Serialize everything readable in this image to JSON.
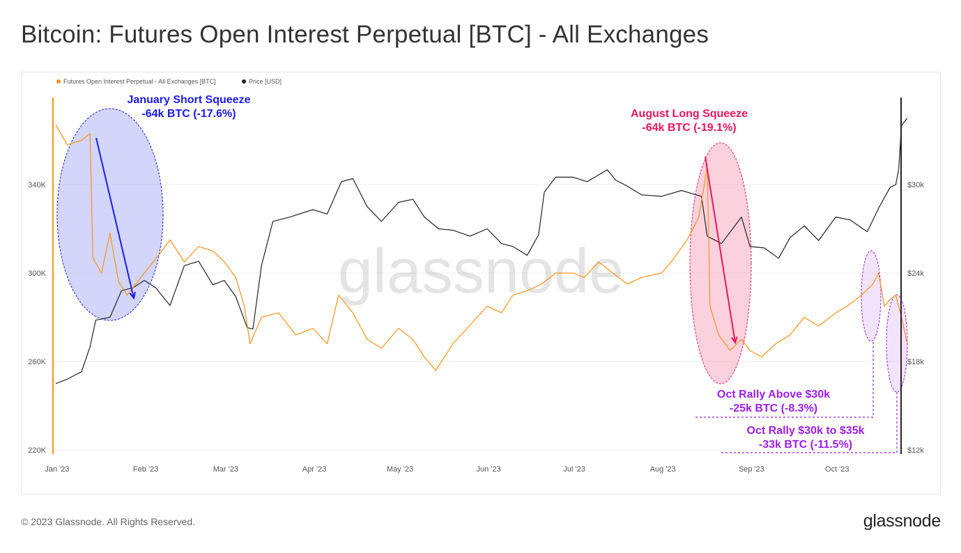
{
  "title": "Bitcoin: Futures Open Interest Perpetual [BTC] - All Exchanges",
  "footer": "© 2023 Glassnode. All Rights Reserved.",
  "logo": "glassnode",
  "watermark": "glassnode",
  "colors": {
    "oi": "#f7931a",
    "price": "#222222",
    "january": "#1a1aee",
    "august": "#e8175d",
    "october": "#9b1fe8"
  },
  "chart_data": {
    "type": "line",
    "title": "Bitcoin: Futures Open Interest Perpetual [BTC] - All Exchanges",
    "legend": [
      "Futures Open Interest Perpetual - All Exchanges [BTC]",
      "Price [USD]"
    ],
    "legend_placement": "top-left",
    "x_ticks": [
      "Jan '23",
      "Feb '23",
      "Mar '23",
      "Apr '23",
      "May '23",
      "Jun '23",
      "Jul '23",
      "Aug '23",
      "Sep '23",
      "Oct '23"
    ],
    "x_tick_dates": [
      "2023-01-01",
      "2023-02-01",
      "2023-03-01",
      "2023-04-01",
      "2023-05-01",
      "2023-06-01",
      "2023-07-01",
      "2023-08-01",
      "2023-09-01",
      "2023-10-01"
    ],
    "xlim": [
      "2023-01-01",
      "2023-10-27"
    ],
    "left_axis": {
      "ticks": [
        "220K",
        "260K",
        "300K",
        "340K"
      ],
      "tick_values": [
        220,
        260,
        300,
        340
      ],
      "ylim": [
        220,
        380
      ],
      "unit": "thousand BTC"
    },
    "right_axis": {
      "ticks": [
        "$12k",
        "$18k",
        "$24k",
        "$30k"
      ],
      "tick_values": [
        12,
        18,
        24,
        30
      ],
      "ylim": [
        12,
        36
      ],
      "unit": "thousand USD"
    },
    "grid": true,
    "series": [
      {
        "name": "Futures Open Interest Perpetual - All Exchanges [BTC]",
        "axis": "left",
        "points": [
          [
            "2023-01-01",
            367
          ],
          [
            "2023-01-05",
            358
          ],
          [
            "2023-01-10",
            360
          ],
          [
            "2023-01-13",
            363
          ],
          [
            "2023-01-14",
            307
          ],
          [
            "2023-01-17",
            300
          ],
          [
            "2023-01-20",
            318
          ],
          [
            "2023-01-23",
            296
          ],
          [
            "2023-01-26",
            290
          ],
          [
            "2023-02-01",
            300
          ],
          [
            "2023-02-06",
            308
          ],
          [
            "2023-02-10",
            315
          ],
          [
            "2023-02-15",
            305
          ],
          [
            "2023-02-20",
            312
          ],
          [
            "2023-02-25",
            310
          ],
          [
            "2023-03-01",
            305
          ],
          [
            "2023-03-05",
            298
          ],
          [
            "2023-03-08",
            285
          ],
          [
            "2023-03-10",
            268
          ],
          [
            "2023-03-14",
            280
          ],
          [
            "2023-03-20",
            282
          ],
          [
            "2023-03-26",
            272
          ],
          [
            "2023-04-01",
            275
          ],
          [
            "2023-04-06",
            268
          ],
          [
            "2023-04-10",
            290
          ],
          [
            "2023-04-15",
            282
          ],
          [
            "2023-04-20",
            270
          ],
          [
            "2023-04-25",
            266
          ],
          [
            "2023-05-01",
            275
          ],
          [
            "2023-05-06",
            270
          ],
          [
            "2023-05-10",
            262
          ],
          [
            "2023-05-14",
            256
          ],
          [
            "2023-05-20",
            268
          ],
          [
            "2023-05-25",
            275
          ],
          [
            "2023-06-01",
            285
          ],
          [
            "2023-06-06",
            282
          ],
          [
            "2023-06-10",
            290
          ],
          [
            "2023-06-15",
            292
          ],
          [
            "2023-06-20",
            295
          ],
          [
            "2023-06-25",
            300
          ],
          [
            "2023-07-01",
            300
          ],
          [
            "2023-07-05",
            298
          ],
          [
            "2023-07-10",
            305
          ],
          [
            "2023-07-15",
            300
          ],
          [
            "2023-07-20",
            295
          ],
          [
            "2023-07-25",
            298
          ],
          [
            "2023-08-01",
            300
          ],
          [
            "2023-08-05",
            306
          ],
          [
            "2023-08-10",
            315
          ],
          [
            "2023-08-14",
            325
          ],
          [
            "2023-08-16",
            340
          ],
          [
            "2023-08-17",
            349
          ],
          [
            "2023-08-18",
            285
          ],
          [
            "2023-08-21",
            272
          ],
          [
            "2023-08-25",
            265
          ],
          [
            "2023-08-29",
            270
          ],
          [
            "2023-09-01",
            265
          ],
          [
            "2023-09-05",
            262
          ],
          [
            "2023-09-10",
            268
          ],
          [
            "2023-09-15",
            272
          ],
          [
            "2023-09-20",
            280
          ],
          [
            "2023-09-25",
            276
          ],
          [
            "2023-10-01",
            282
          ],
          [
            "2023-10-05",
            285
          ],
          [
            "2023-10-10",
            290
          ],
          [
            "2023-10-14",
            295
          ],
          [
            "2023-10-16",
            300
          ],
          [
            "2023-10-18",
            285
          ],
          [
            "2023-10-20",
            288
          ],
          [
            "2023-10-22",
            290
          ],
          [
            "2023-10-24",
            280
          ],
          [
            "2023-10-26",
            268
          ]
        ]
      },
      {
        "name": "Price [USD]",
        "axis": "right",
        "points": [
          [
            "2023-01-01",
            16.5
          ],
          [
            "2023-01-05",
            16.8
          ],
          [
            "2023-01-10",
            17.3
          ],
          [
            "2023-01-13",
            19.0
          ],
          [
            "2023-01-15",
            20.8
          ],
          [
            "2023-01-20",
            21.0
          ],
          [
            "2023-01-24",
            22.8
          ],
          [
            "2023-01-28",
            23.0
          ],
          [
            "2023-02-01",
            23.5
          ],
          [
            "2023-02-05",
            23.0
          ],
          [
            "2023-02-10",
            21.8
          ],
          [
            "2023-02-15",
            24.5
          ],
          [
            "2023-02-20",
            24.8
          ],
          [
            "2023-02-25",
            23.2
          ],
          [
            "2023-03-01",
            23.5
          ],
          [
            "2023-03-05",
            22.4
          ],
          [
            "2023-03-09",
            20.3
          ],
          [
            "2023-03-11",
            20.2
          ],
          [
            "2023-03-14",
            24.5
          ],
          [
            "2023-03-18",
            27.5
          ],
          [
            "2023-03-24",
            27.8
          ],
          [
            "2023-04-01",
            28.3
          ],
          [
            "2023-04-06",
            28.0
          ],
          [
            "2023-04-11",
            30.2
          ],
          [
            "2023-04-15",
            30.4
          ],
          [
            "2023-04-20",
            28.5
          ],
          [
            "2023-04-25",
            27.5
          ],
          [
            "2023-05-01",
            28.8
          ],
          [
            "2023-05-06",
            29.0
          ],
          [
            "2023-05-10",
            27.8
          ],
          [
            "2023-05-15",
            27.0
          ],
          [
            "2023-05-20",
            26.9
          ],
          [
            "2023-05-26",
            26.5
          ],
          [
            "2023-06-01",
            27.0
          ],
          [
            "2023-06-06",
            26.0
          ],
          [
            "2023-06-10",
            25.8
          ],
          [
            "2023-06-15",
            25.2
          ],
          [
            "2023-06-19",
            26.6
          ],
          [
            "2023-06-21",
            29.5
          ],
          [
            "2023-06-25",
            30.5
          ],
          [
            "2023-07-01",
            30.5
          ],
          [
            "2023-07-06",
            30.2
          ],
          [
            "2023-07-13",
            31.0
          ],
          [
            "2023-07-16",
            30.3
          ],
          [
            "2023-07-20",
            29.9
          ],
          [
            "2023-07-25",
            29.3
          ],
          [
            "2023-08-01",
            29.2
          ],
          [
            "2023-08-08",
            29.6
          ],
          [
            "2023-08-15",
            29.2
          ],
          [
            "2023-08-17",
            26.5
          ],
          [
            "2023-08-22",
            26.0
          ],
          [
            "2023-08-29",
            27.8
          ],
          [
            "2023-09-01",
            25.8
          ],
          [
            "2023-09-06",
            25.7
          ],
          [
            "2023-09-11",
            25.0
          ],
          [
            "2023-09-15",
            26.4
          ],
          [
            "2023-09-20",
            27.2
          ],
          [
            "2023-09-25",
            26.2
          ],
          [
            "2023-10-01",
            27.8
          ],
          [
            "2023-10-06",
            27.6
          ],
          [
            "2023-10-12",
            26.8
          ],
          [
            "2023-10-16",
            28.4
          ],
          [
            "2023-10-20",
            29.8
          ],
          [
            "2023-10-22",
            30.0
          ],
          [
            "2023-10-23",
            31.0
          ],
          [
            "2023-10-24",
            34.0
          ],
          [
            "2023-10-26",
            34.5
          ]
        ]
      }
    ],
    "annotations": [
      {
        "id": "january",
        "line1": "January Short Squeeze",
        "line2": "-64k BTC (-17.6%)"
      },
      {
        "id": "august",
        "line1": "August Long Squeeze",
        "line2": "-64k BTC (-19.1%)"
      },
      {
        "id": "oct1",
        "line1": "Oct Rally Above $30k",
        "line2": "-25k BTC (-8.3%)"
      },
      {
        "id": "oct2",
        "line1": "Oct Rally $30k to $35k",
        "line2": "-33k BTC (-11.5%)"
      }
    ]
  }
}
